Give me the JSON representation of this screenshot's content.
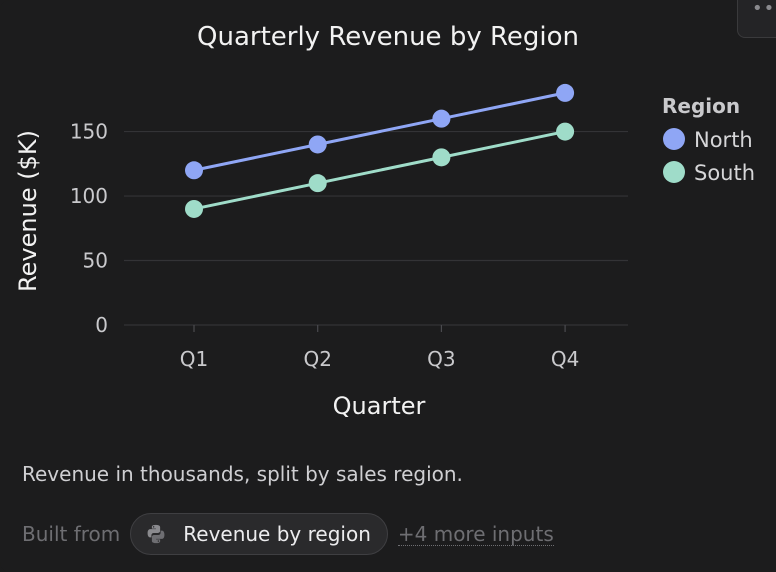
{
  "colors": {
    "background": "#1c1c1d",
    "north": "#8fa6f5",
    "south": "#9fdcc9"
  },
  "menu": {
    "icon": "more-dots-icon"
  },
  "chart_data": {
    "type": "line",
    "title": "Quarterly Revenue by Region",
    "xlabel": "Quarter",
    "ylabel": "Revenue ($K)",
    "categories": [
      "Q1",
      "Q2",
      "Q3",
      "Q4"
    ],
    "yticks": [
      0,
      50,
      100,
      150
    ],
    "ylim": [
      0,
      190
    ],
    "grid": true,
    "legend_title": "Region",
    "legend_position": "right",
    "series": [
      {
        "name": "North",
        "values": [
          120,
          140,
          160,
          180
        ],
        "color": "#8fa6f5"
      },
      {
        "name": "South",
        "values": [
          90,
          110,
          130,
          150
        ],
        "color": "#9fdcc9"
      }
    ]
  },
  "caption": "Revenue in thousands, split by sales region.",
  "footer": {
    "built_from_label": "Built from",
    "chip_label": "Revenue by region",
    "chip_icon": "python-icon",
    "more_inputs_label": "+4 more inputs"
  }
}
